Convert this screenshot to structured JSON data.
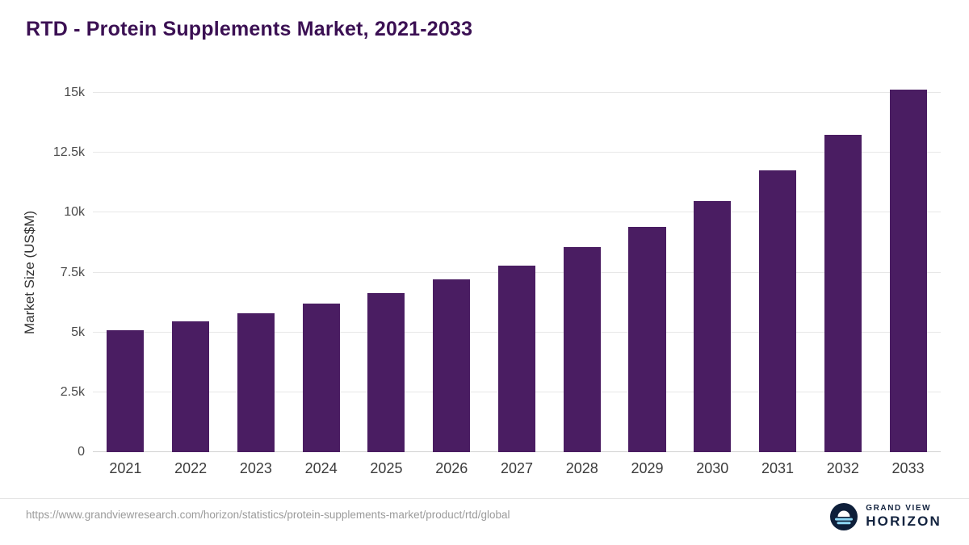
{
  "title": "RTD - Protein Supplements Market, 2021-2033",
  "chart_data": {
    "type": "bar",
    "title": "RTD - Protein Supplements Market, 2021-2033",
    "categories": [
      "2021",
      "2022",
      "2023",
      "2024",
      "2025",
      "2026",
      "2027",
      "2028",
      "2029",
      "2030",
      "2031",
      "2032",
      "2033"
    ],
    "values": [
      5100,
      5450,
      5800,
      6200,
      6650,
      7200,
      7800,
      8550,
      9400,
      10500,
      11750,
      13250,
      15150
    ],
    "xlabel": "",
    "ylabel": "Market Size (US$M)",
    "ylim": [
      0,
      15000
    ],
    "yticks": [
      0,
      2500,
      5000,
      7500,
      10000,
      12500,
      15000
    ],
    "ytick_labels": [
      "0",
      "2.5k",
      "5k",
      "7.5k",
      "10k",
      "12.5k",
      "15k"
    ],
    "bar_color": "#4a1d62",
    "grid": "horizontal",
    "legend": "none"
  },
  "footer": {
    "source_url": "https://www.grandviewresearch.com/horizon/statistics/protein-supplements-market/product/rtd/global",
    "brand": {
      "line1": "GRAND VIEW",
      "line2": "HORIZON"
    }
  },
  "colors": {
    "title": "#3b1053",
    "bar": "#4a1d62",
    "grid": "#e7e7e7",
    "axis_text": "#3c3c3c",
    "url_text": "#9b9b9b",
    "brand_navy": "#13233f",
    "brand_blue": "#8ed8f6"
  }
}
